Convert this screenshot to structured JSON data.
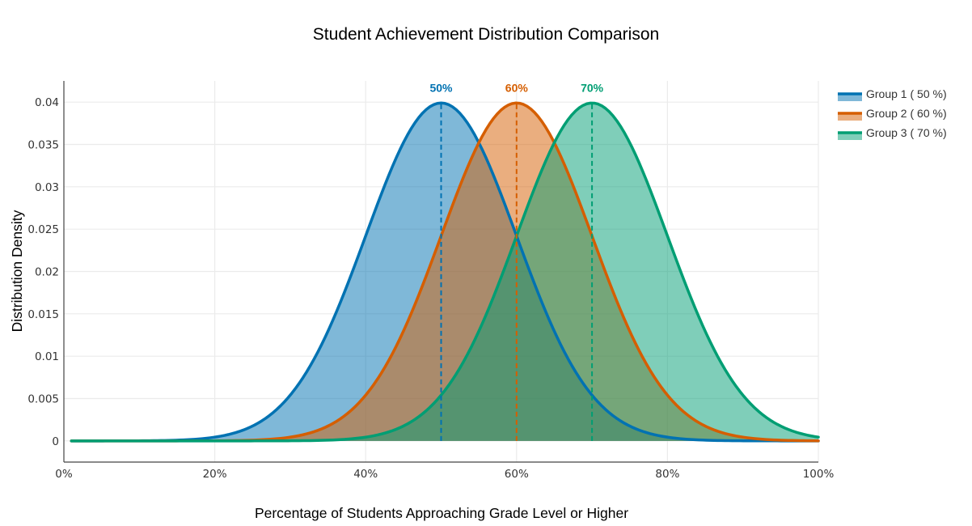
{
  "chart_data": {
    "type": "area",
    "title": "Student Achievement Distribution Comparison",
    "xlabel": "Percentage of Students Approaching Grade Level or Higher",
    "ylabel": "Distribution Density",
    "xlim": [
      0,
      100
    ],
    "ylim": [
      -0.0025,
      0.0425
    ],
    "x_ticks": [
      0,
      20,
      40,
      60,
      80,
      100
    ],
    "x_tick_labels": [
      "0%",
      "20%",
      "40%",
      "60%",
      "80%",
      "100%"
    ],
    "y_ticks": [
      0,
      0.005,
      0.01,
      0.015,
      0.02,
      0.025,
      0.03,
      0.035,
      0.04
    ],
    "y_tick_labels": [
      "0",
      "0.005",
      "0.01",
      "0.015",
      "0.02",
      "0.025",
      "0.03",
      "0.035",
      "0.04"
    ],
    "grid": true,
    "legend_position": "top-right",
    "curve_model": "normal",
    "x_range": [
      1,
      100
    ],
    "series": [
      {
        "name": "Group 1 ( 50 %)",
        "mean": 50,
        "std": 10,
        "color": "#0072B2",
        "peak_label": "50%"
      },
      {
        "name": "Group 2 ( 60 %)",
        "mean": 60,
        "std": 10,
        "color": "#D55E00",
        "peak_label": "60%"
      },
      {
        "name": "Group 3 ( 70 %)",
        "mean": 70,
        "std": 10,
        "color": "#009E73",
        "peak_label": "70%"
      }
    ]
  }
}
